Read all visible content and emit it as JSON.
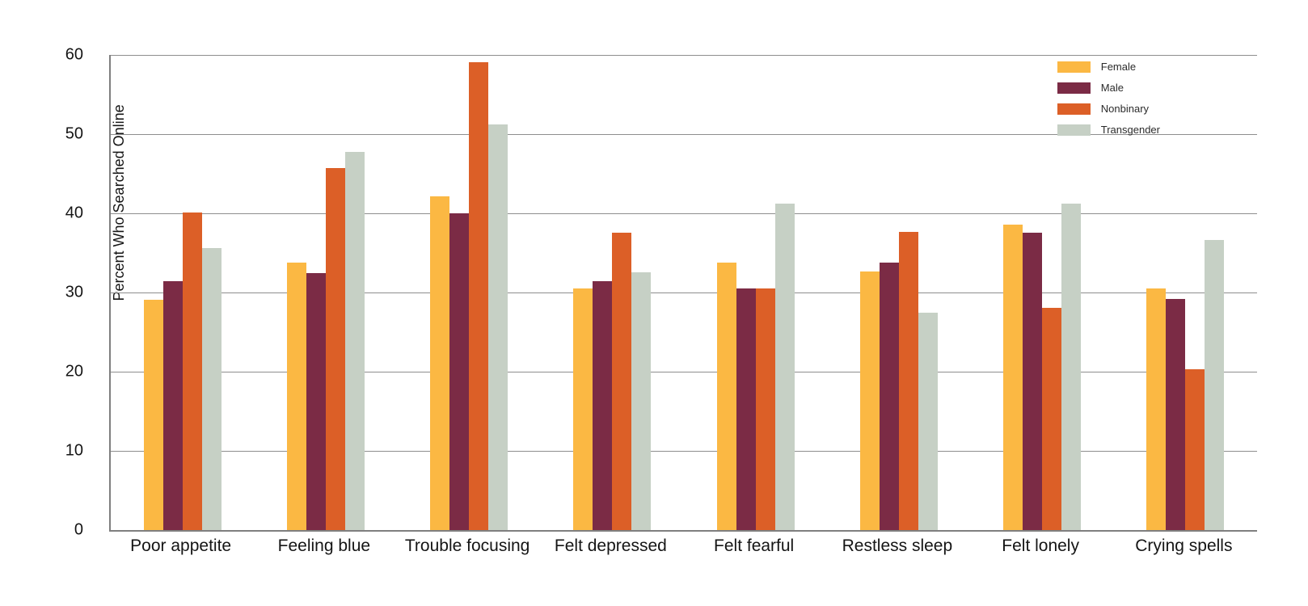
{
  "chart_data": {
    "type": "bar",
    "title": "",
    "xlabel": "",
    "ylabel": "Percent Who Searched Online",
    "ylim": [
      0,
      60
    ],
    "yticks": [
      0,
      10,
      20,
      30,
      40,
      50,
      60
    ],
    "grid": "horizontal",
    "legend_position": "top-right-inside",
    "categories": [
      "Poor appetite",
      "Feeling blue",
      "Trouble focusing",
      "Felt depressed",
      "Felt fearful",
      "Restless sleep",
      "Felt lonely",
      "Crying spells"
    ],
    "series": [
      {
        "name": "Female",
        "color": "#FBB843",
        "values": [
          29.1,
          33.8,
          42.1,
          30.5,
          33.8,
          32.7,
          38.6,
          30.5
        ]
      },
      {
        "name": "Male",
        "color": "#7B2B45",
        "values": [
          31.4,
          32.5,
          40.0,
          31.4,
          30.5,
          33.8,
          37.6,
          29.2
        ]
      },
      {
        "name": "Nonbinary",
        "color": "#DC5F27",
        "values": [
          40.1,
          45.7,
          59.1,
          37.6,
          30.5,
          37.7,
          28.1,
          20.3
        ]
      },
      {
        "name": "Transgender",
        "color": "#C6D0C5",
        "values": [
          35.6,
          47.8,
          51.2,
          32.6,
          41.2,
          27.5,
          41.2,
          36.6
        ]
      }
    ]
  }
}
